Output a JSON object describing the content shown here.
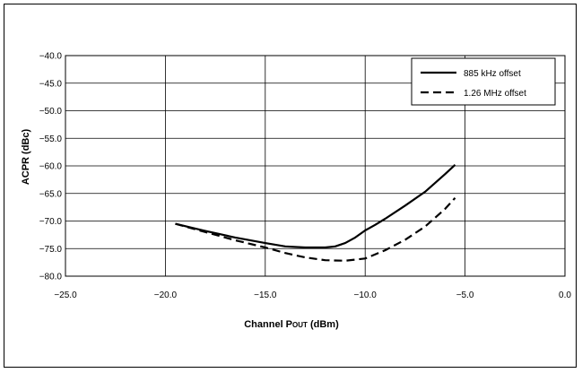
{
  "chart_data": {
    "type": "line",
    "xlabel_main": "Channel P",
    "xlabel_sub": "OUT",
    "xlabel_unit": " (dBm)",
    "ylabel": "ACPR (dBc)",
    "xlim": [
      -25.0,
      0.0
    ],
    "ylim": [
      -80.0,
      -40.0
    ],
    "xticks": [
      -25,
      -20,
      -15,
      -10,
      -5,
      0
    ],
    "yticks": [
      -40,
      -45,
      -50,
      -55,
      -60,
      -65,
      -70,
      -75,
      -80
    ],
    "grid": true,
    "legend_position": "top-right",
    "series": [
      {
        "name": "885 kHz offset",
        "style": "solid",
        "x": [
          -19.5,
          -18,
          -16.5,
          -15,
          -14,
          -13,
          -12,
          -11.5,
          -11,
          -10.5,
          -10,
          -9.5,
          -9,
          -8,
          -7,
          -6,
          -5.5
        ],
        "y": [
          -70.5,
          -71.8,
          -73.0,
          -74.0,
          -74.6,
          -74.8,
          -74.8,
          -74.6,
          -74.0,
          -73.0,
          -71.7,
          -70.7,
          -69.6,
          -67.2,
          -64.7,
          -61.5,
          -59.8
        ]
      },
      {
        "name": "1.26 MHz offset",
        "style": "dashed",
        "x": [
          -19.5,
          -18,
          -16.5,
          -15,
          -14,
          -13,
          -12,
          -11,
          -10,
          -9,
          -8,
          -7,
          -6,
          -5.5
        ],
        "y": [
          -70.5,
          -72.0,
          -73.5,
          -74.8,
          -75.8,
          -76.6,
          -77.1,
          -77.2,
          -76.8,
          -75.3,
          -73.4,
          -71.0,
          -67.8,
          -65.8
        ]
      }
    ]
  }
}
